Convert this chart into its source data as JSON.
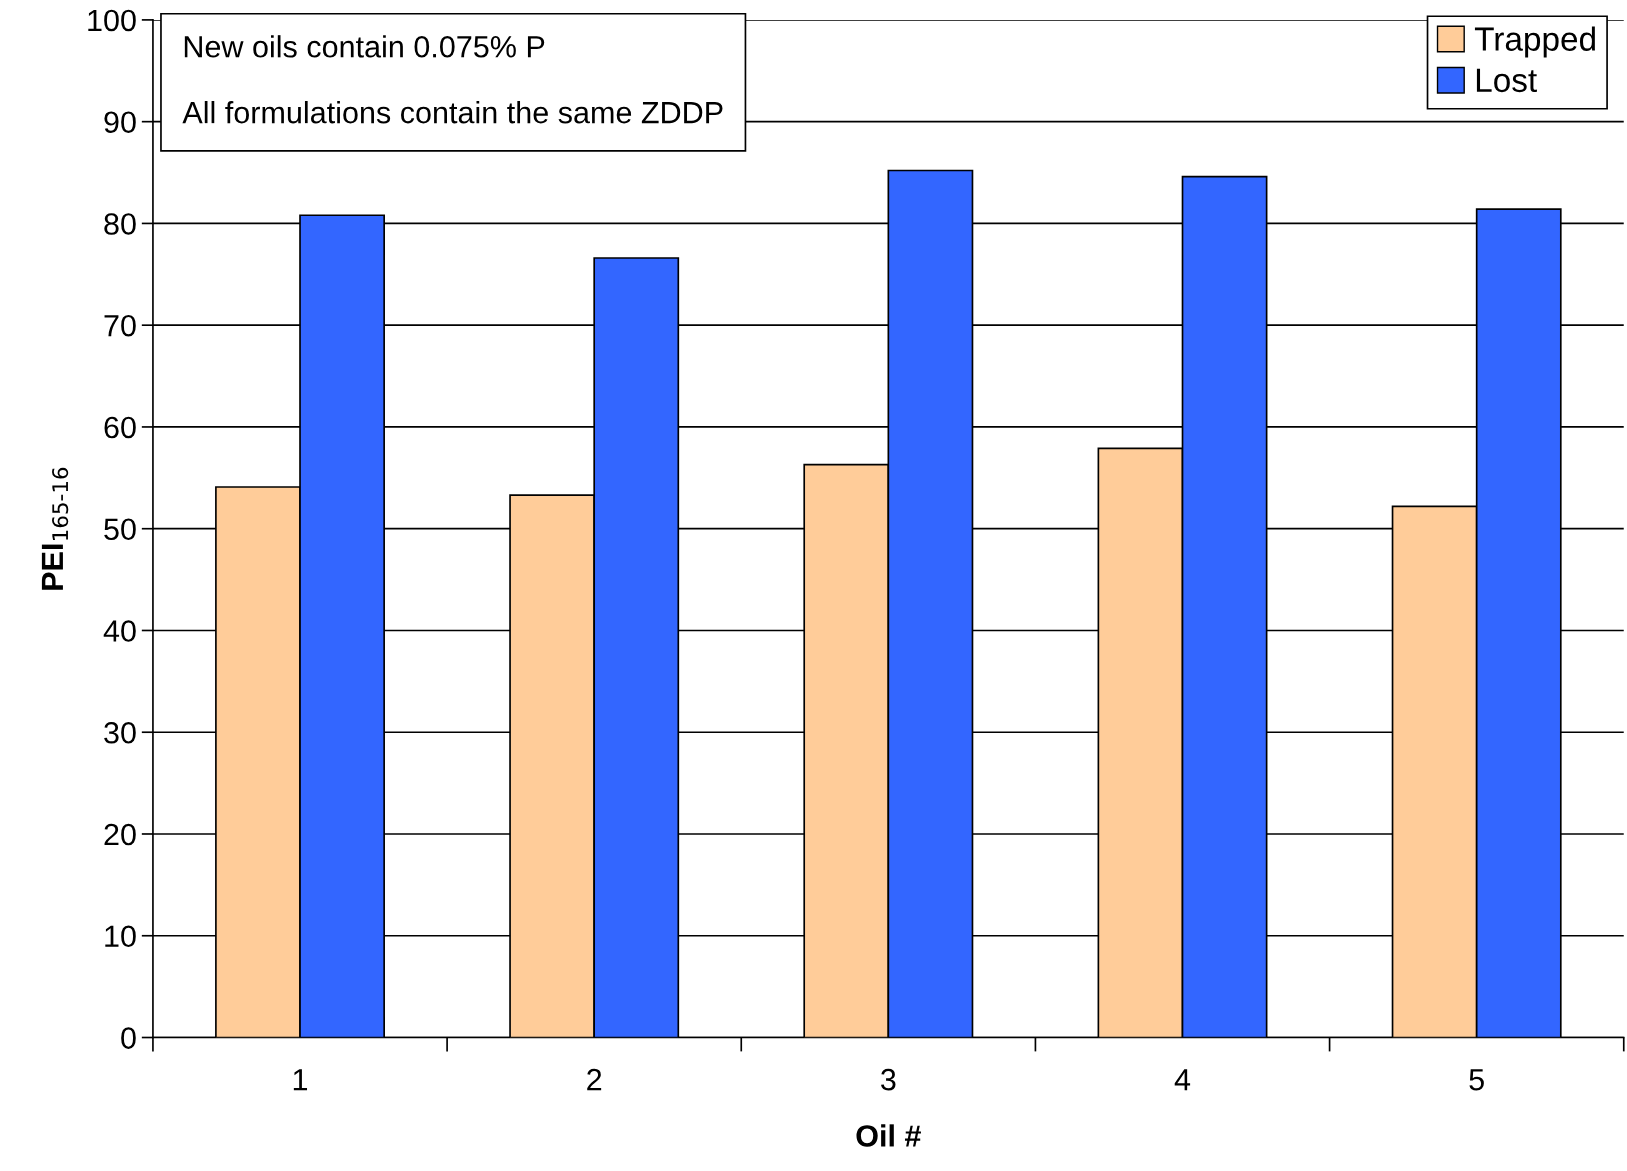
{
  "chart_data": {
    "type": "bar",
    "xlabel": "Oil #",
    "ylabel": "PEI$_{165-16}$",
    "categories": [
      "1",
      "2",
      "3",
      "4",
      "5"
    ],
    "series": [
      {
        "name": "Trapped",
        "color": "#ffcc99",
        "values": [
          54.1,
          53.3,
          56.3,
          57.9,
          52.2
        ]
      },
      {
        "name": "Lost",
        "color": "#3366ff",
        "values": [
          80.8,
          76.6,
          85.2,
          84.6,
          81.4
        ]
      }
    ],
    "ylim": [
      0,
      100
    ],
    "yticks": [
      0,
      10,
      20,
      30,
      40,
      50,
      60,
      70,
      80,
      90,
      100
    ],
    "grid": "y",
    "legend": "top right",
    "annotations": [
      "New oils contain 0.075% P\n\nAll formulations contain the same ZDDP"
    ]
  }
}
